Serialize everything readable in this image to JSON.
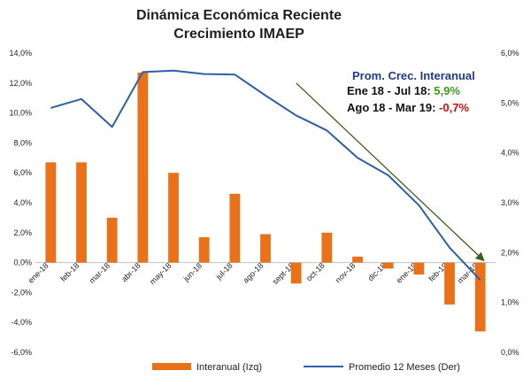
{
  "chart_data": {
    "type": "bar+line",
    "title": "Dinámica Económica Reciente",
    "subtitle": "Crecimiento IMAEP",
    "categories": [
      "ene-18",
      "feb-18",
      "mar-18",
      "abr-18",
      "may-18",
      "jun-18",
      "jul-18",
      "ago-18",
      "sept-18",
      "oct-18",
      "nov-18",
      "dic-18",
      "ene-19",
      "feb-19",
      "mar-19"
    ],
    "series": [
      {
        "name": "Interanual (Izq)",
        "kind": "bar",
        "axis": "left",
        "color": "#E8711A",
        "values": [
          6.7,
          6.7,
          3.0,
          12.7,
          6.0,
          1.7,
          4.6,
          1.9,
          -1.4,
          2.0,
          0.4,
          -0.4,
          -0.8,
          -2.8,
          -4.6
        ]
      },
      {
        "name": "Promedio 12 Meses (Der)",
        "kind": "line",
        "axis": "right",
        "color": "#2E5FA8",
        "values": [
          4.9,
          5.08,
          4.52,
          5.62,
          5.65,
          5.58,
          5.57,
          5.15,
          4.75,
          4.45,
          3.9,
          3.55,
          2.95,
          2.1,
          1.45
        ]
      }
    ],
    "y_left": {
      "min": -6,
      "max": 14,
      "step": 2,
      "tick_labels": [
        "-6,0%",
        "-4,0%",
        "-2,0%",
        "0,0%",
        "2,0%",
        "4,0%",
        "6,0%",
        "8,0%",
        "10,0%",
        "12,0%",
        "14,0%"
      ]
    },
    "y_right": {
      "min": 0,
      "max": 6,
      "step": 1,
      "tick_labels": [
        "0,0%",
        "1,0%",
        "2,0%",
        "3,0%",
        "4,0%",
        "5,0%",
        "6,0%"
      ]
    },
    "annotation": {
      "heading": "Prom. Crec. Interanual",
      "line1_label": "Ene 18 - Jul 18: ",
      "line1_value": "5,9%",
      "line2_label": "Ago 18 - Mar 19: ",
      "line2_value": "-0,7%"
    },
    "trend_arrow": {
      "from": [
        8.5,
        5.4
      ],
      "to": [
        14.6,
        1.85
      ],
      "color": "#3B5E1A",
      "axis": "right"
    },
    "colors": {
      "heading": "#1F3B8C",
      "positive": "#3A9A1E",
      "negative": "#CC1111"
    },
    "legend_position": "bottom",
    "grid": false
  }
}
